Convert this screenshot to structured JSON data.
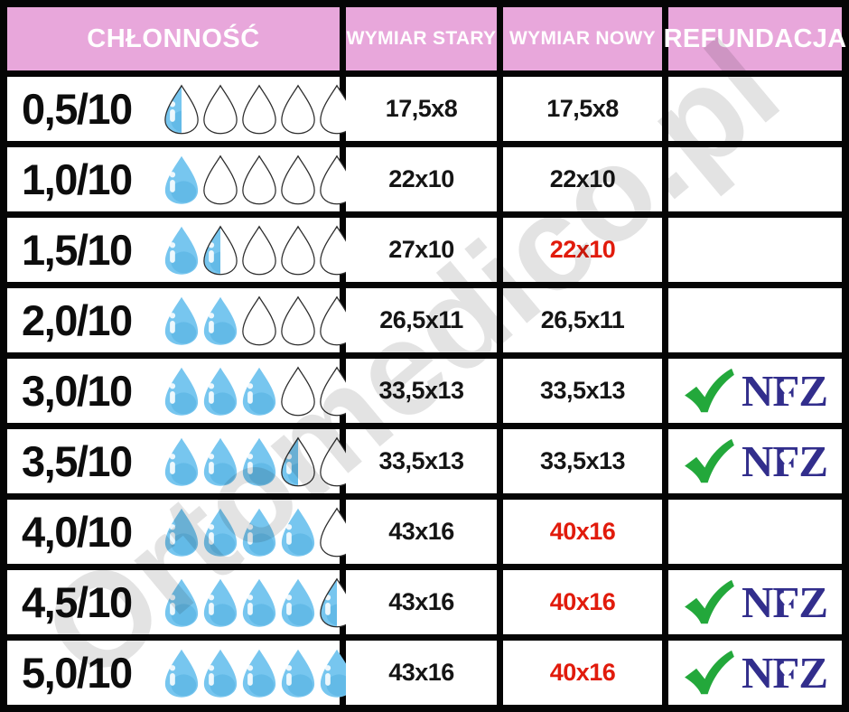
{
  "header": {
    "columns": [
      "CHŁONNOŚĆ",
      "WYMIAR STARY",
      "WYMIAR NOWY",
      "REFUNDACJA"
    ]
  },
  "rows": [
    {
      "chlonnosc": "0,5/10",
      "drops": {
        "full": 0,
        "half": 1,
        "total": 5
      },
      "wymiar_stary": "17,5x8",
      "wymiar_nowy": "17,5x8",
      "wymiar_nowy_red": false,
      "refundacja_nfz": false
    },
    {
      "chlonnosc": "1,0/10",
      "drops": {
        "full": 1,
        "half": 0,
        "total": 5
      },
      "wymiar_stary": "22x10",
      "wymiar_nowy": "22x10",
      "wymiar_nowy_red": false,
      "refundacja_nfz": false
    },
    {
      "chlonnosc": "1,5/10",
      "drops": {
        "full": 1,
        "half": 1,
        "total": 5
      },
      "wymiar_stary": "27x10",
      "wymiar_nowy": "22x10",
      "wymiar_nowy_red": true,
      "refundacja_nfz": false
    },
    {
      "chlonnosc": "2,0/10",
      "drops": {
        "full": 2,
        "half": 0,
        "total": 5
      },
      "wymiar_stary": "26,5x11",
      "wymiar_nowy": "26,5x11",
      "wymiar_nowy_red": false,
      "refundacja_nfz": false
    },
    {
      "chlonnosc": "3,0/10",
      "drops": {
        "full": 3,
        "half": 0,
        "total": 5
      },
      "wymiar_stary": "33,5x13",
      "wymiar_nowy": "33,5x13",
      "wymiar_nowy_red": false,
      "refundacja_nfz": true
    },
    {
      "chlonnosc": "3,5/10",
      "drops": {
        "full": 3,
        "half": 1,
        "total": 5
      },
      "wymiar_stary": "33,5x13",
      "wymiar_nowy": "33,5x13",
      "wymiar_nowy_red": false,
      "refundacja_nfz": true
    },
    {
      "chlonnosc": "4,0/10",
      "drops": {
        "full": 4,
        "half": 0,
        "total": 5
      },
      "wymiar_stary": "43x16",
      "wymiar_nowy": "40x16",
      "wymiar_nowy_red": true,
      "refundacja_nfz": false
    },
    {
      "chlonnosc": "4,5/10",
      "drops": {
        "full": 4,
        "half": 1,
        "total": 5
      },
      "wymiar_stary": "43x16",
      "wymiar_nowy": "40x16",
      "wymiar_nowy_red": true,
      "refundacja_nfz": true
    },
    {
      "chlonnosc": "5,0/10",
      "drops": {
        "full": 5,
        "half": 0,
        "total": 5
      },
      "wymiar_stary": "43x16",
      "wymiar_nowy": "40x16",
      "wymiar_nowy_red": true,
      "refundacja_nfz": true
    }
  ],
  "refund_label": "NFZ",
  "watermark": "Ortomedico.pl",
  "colors": {
    "header_pink": "#E8A7DB",
    "drop_blue": "#77C6EF",
    "drop_shade": "#5CB5E4",
    "drop_outline": "#2B2B2B",
    "highlight_red": "#E11B0C",
    "nfz_navy": "#322E8C",
    "check_green": "#23A83B",
    "border_black": "#050505",
    "watermark_gray": "#8A8A8A"
  }
}
